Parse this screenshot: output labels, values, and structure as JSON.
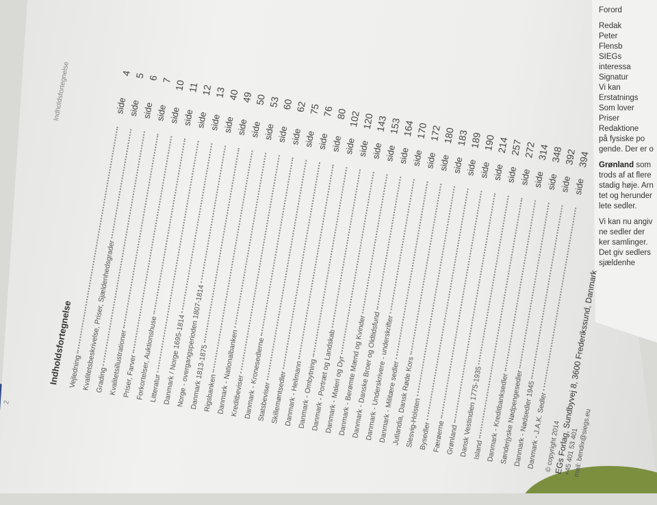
{
  "page": {
    "page_number": "2",
    "running_header": "Indholdsfortegnelse",
    "heading": "Indholdsfortegnelse",
    "side_label": "side",
    "entries": [
      {
        "title": "Vejledning",
        "page": "4"
      },
      {
        "title": "Kvalitetsbeskrivelse, Priser, Sjældenhedsgrader",
        "page": "5"
      },
      {
        "title": "Grading",
        "page": "6"
      },
      {
        "title": "Kvalitetsillustrationer",
        "page": "7"
      },
      {
        "title": "Priser, Farver",
        "page": "10"
      },
      {
        "title": "Forkortelser, Auktionshuse",
        "page": "11"
      },
      {
        "title": "Litteratur",
        "page": "12"
      },
      {
        "title": "Danmark / Norge 1695-1814",
        "page": "13"
      },
      {
        "title": "Norge - overgangsperioden 1807-1814",
        "page": "40"
      },
      {
        "title": "Danmark 1813-1875",
        "page": "49"
      },
      {
        "title": "Rigsbanken",
        "page": "50"
      },
      {
        "title": "Danmark - Nationalbanken",
        "page": "53"
      },
      {
        "title": "Kreditbeviser",
        "page": "60"
      },
      {
        "title": "Danmark - Kronesedlerne",
        "page": "62"
      },
      {
        "title": "Statsbeviser",
        "page": "75"
      },
      {
        "title": "Skillemøntsedler",
        "page": "76"
      },
      {
        "title": "Danmark - Heilmann",
        "page": "80"
      },
      {
        "title": "Danmark - Ombytning",
        "page": "102"
      },
      {
        "title": "Danmark - Portræt og Landskab",
        "page": "120"
      },
      {
        "title": "Danmark - Maleri og Dyr",
        "page": "143"
      },
      {
        "title": "Danmark - Berømte Mænd og Kvinder",
        "page": "153"
      },
      {
        "title": "Danmark - Danske Broer og Oldtidsfund",
        "page": "164"
      },
      {
        "title": "Danmark - Underskrivere - underskrifter",
        "page": "170"
      },
      {
        "title": "Danmark - Militære sedler",
        "page": "172"
      },
      {
        "title": "Jutlandia, Dansk Røde Kors",
        "page": "180"
      },
      {
        "title": "Slesvig-Holsten",
        "page": "183"
      },
      {
        "title": "Bysedler",
        "page": "189"
      },
      {
        "title": "Færøerne",
        "page": "190"
      },
      {
        "title": "Grønland",
        "page": "214"
      },
      {
        "title": "Dansk Vestindien 1775-1935",
        "page": "257"
      },
      {
        "title": "Island",
        "page": "272"
      },
      {
        "title": "Danmark - Kreditbanksedler",
        "page": "314"
      },
      {
        "title": "Sønderjyske Nødpengesedler",
        "page": "348"
      },
      {
        "title": "Danmark - Nødsedler 1945",
        "page": "392"
      },
      {
        "title": "Danmark - J.A.K. Sedler",
        "page": "394"
      }
    ],
    "footer": {
      "copyright": "© copyright 2014",
      "publisher": "EGs Forlag, Sundbyvej 8, 3600 Frederikssund, Danmark",
      "phone": "+45 401 53 401",
      "mail": "mail: bendix@siegs.eu"
    }
  },
  "opposite_page": {
    "header": "Forord",
    "fragments": [
      "Redak",
      "Peter",
      "Flensb",
      "SIEGs",
      "interessa",
      "Signatur",
      "Vi kan",
      "Erstatnings",
      "Som lover",
      "Priser",
      "Redaktione",
      "på fysiske po",
      "gende. Der er o"
    ],
    "groenland_title": "Grønland",
    "groenland_text": "som trods af at flere stadig høje. Arn tet og herunder lete sedler.",
    "last_para": "Vi kan nu angiv ne sedler der ker samlinger. Det giv sedlers sjældenhe"
  }
}
